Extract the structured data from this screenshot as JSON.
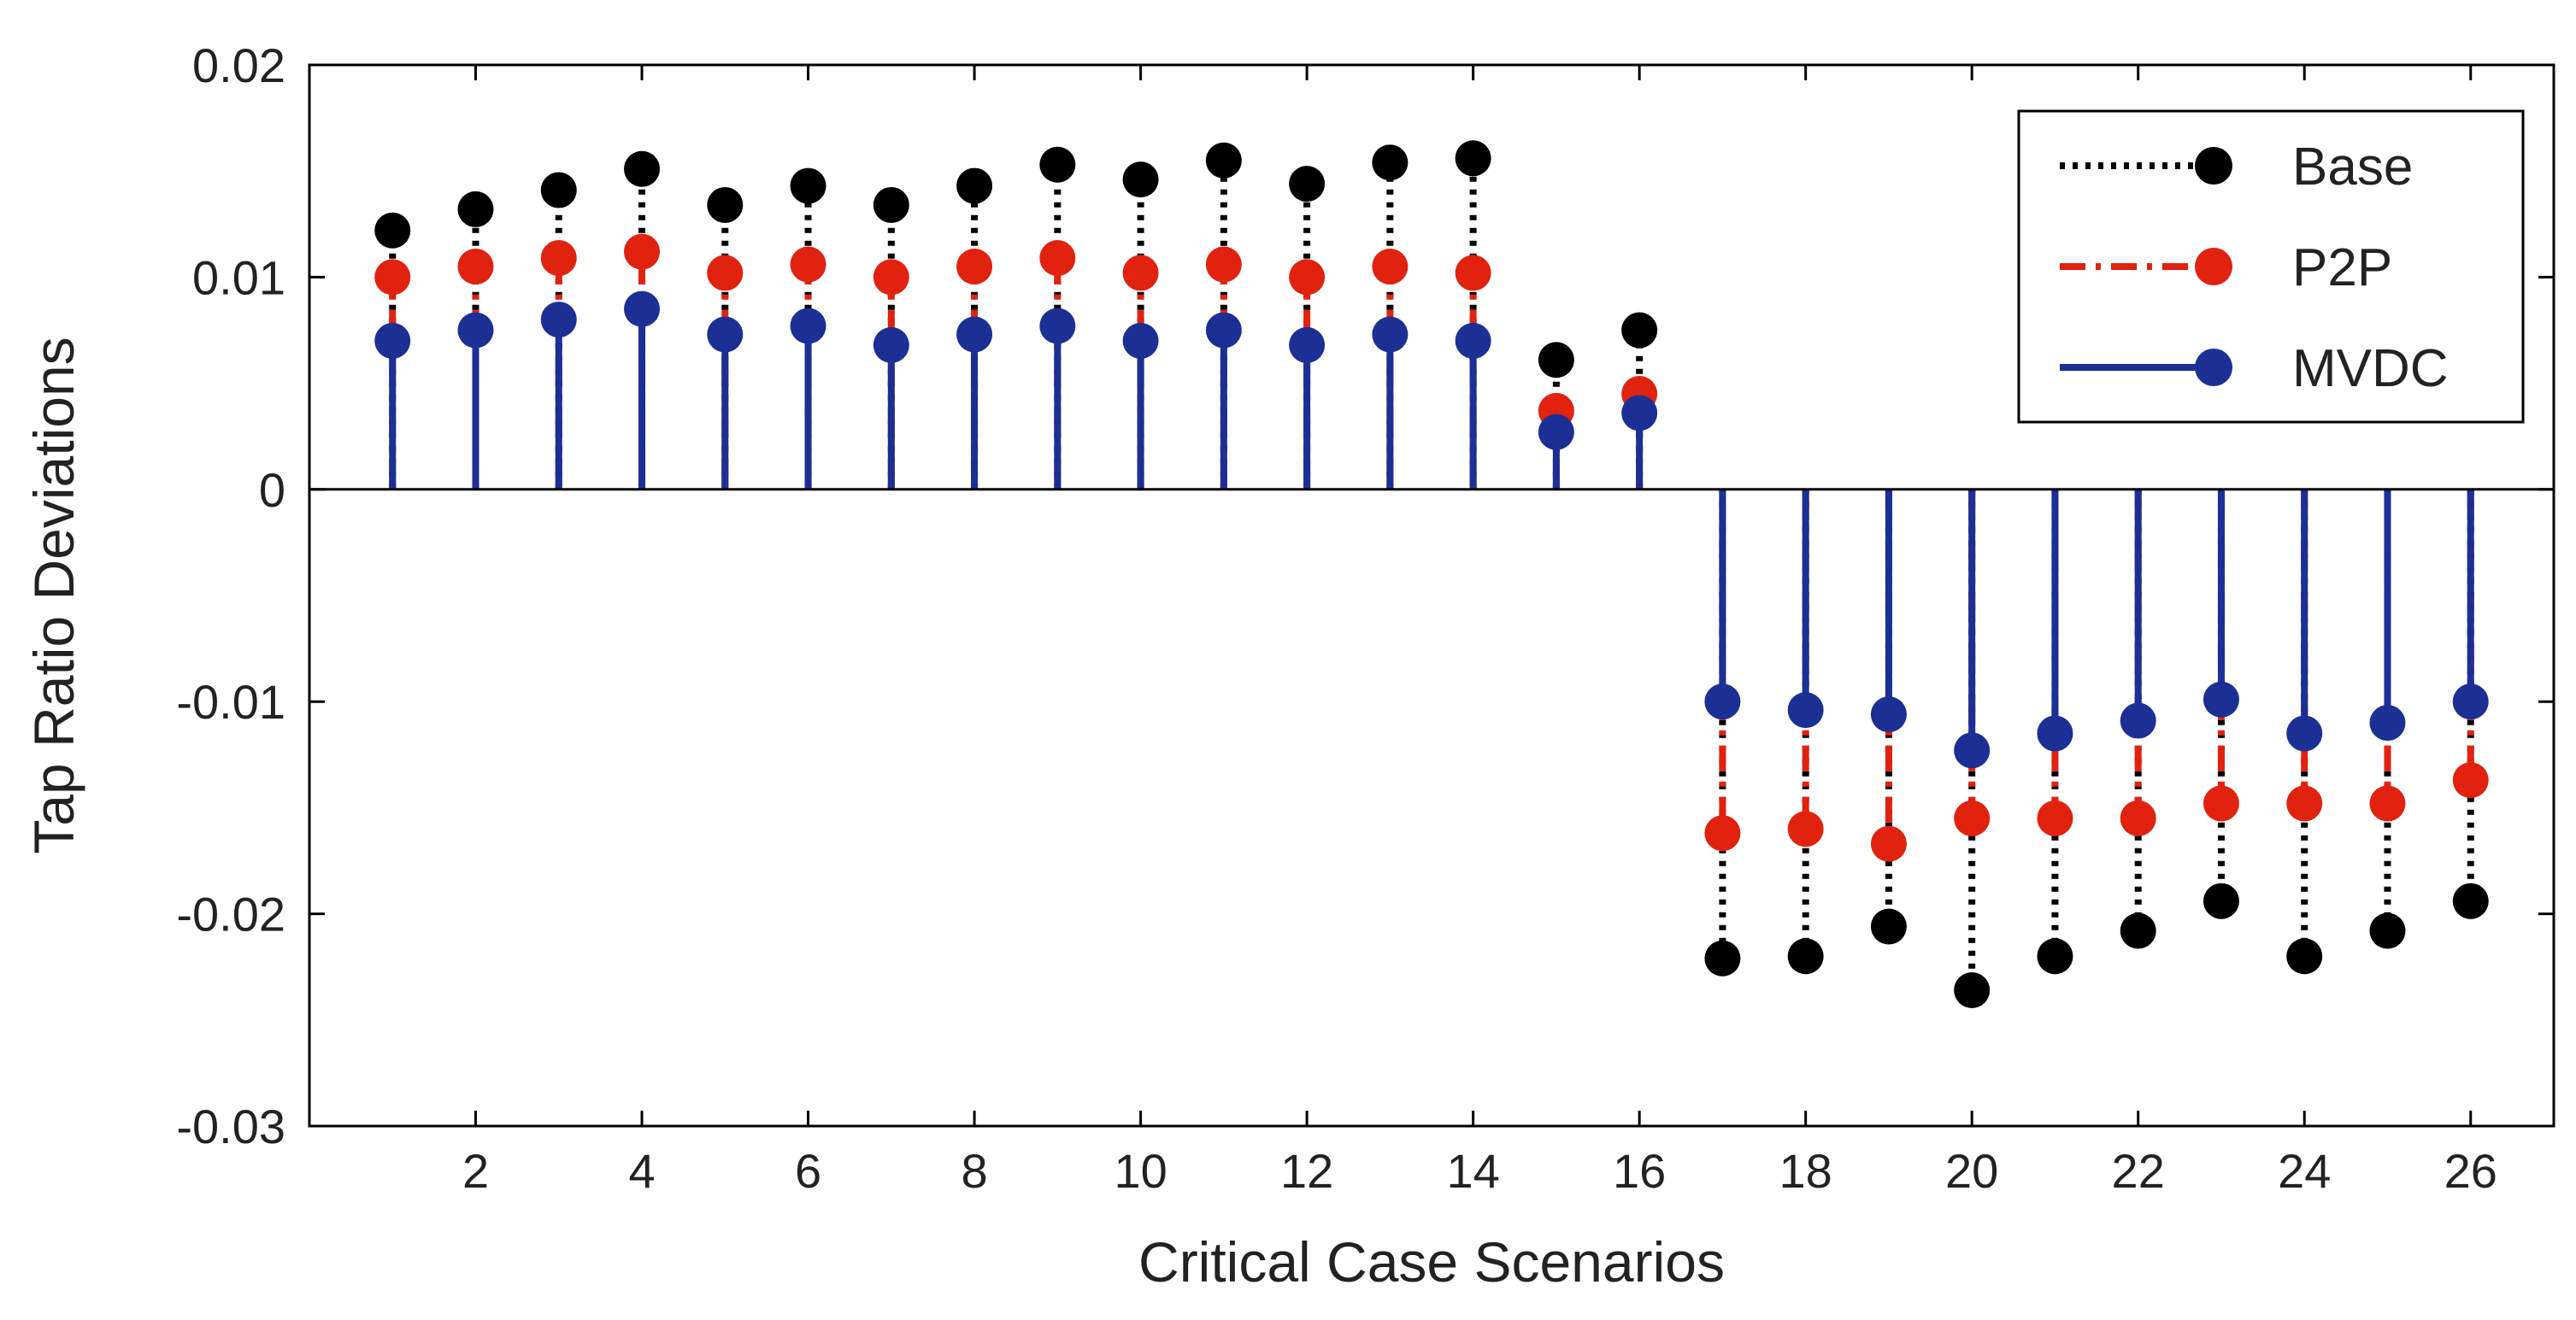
{
  "chart_data": {
    "type": "stem",
    "title": "",
    "xlabel": "Critical Case Scenarios",
    "ylabel": "Tap Ratio Deviations",
    "xlim": [
      0,
      27
    ],
    "ylim": [
      -0.03,
      0.02
    ],
    "x": [
      1,
      2,
      3,
      4,
      5,
      6,
      7,
      8,
      9,
      10,
      11,
      12,
      13,
      14,
      15,
      16,
      17,
      18,
      19,
      20,
      21,
      22,
      23,
      24,
      25,
      26
    ],
    "xticks": [
      2,
      4,
      6,
      8,
      10,
      12,
      14,
      16,
      18,
      20,
      22,
      24,
      26
    ],
    "xtick_labels": [
      "2",
      "4",
      "6",
      "8",
      "10",
      "12",
      "14",
      "16",
      "18",
      "20",
      "22",
      "24",
      "26"
    ],
    "yticks": [
      0.02,
      0.01,
      0,
      -0.01,
      -0.02,
      -0.03
    ],
    "ytick_labels": [
      "0.02",
      "0.01",
      "0",
      "-0.01",
      "-0.02",
      "-0.03"
    ],
    "legend_position": "top-right",
    "series": [
      {
        "name": "Base",
        "line_style": "dotted",
        "color": "#000000",
        "values": [
          0.0122,
          0.0132,
          0.0141,
          0.0151,
          0.0134,
          0.0143,
          0.0134,
          0.0143,
          0.0153,
          0.0146,
          0.0155,
          0.0144,
          0.0154,
          0.0156,
          0.0061,
          0.0075,
          -0.0221,
          -0.022,
          -0.0206,
          -0.0236,
          -0.022,
          -0.0208,
          -0.0194,
          -0.022,
          -0.0208,
          -0.0194
        ]
      },
      {
        "name": "P2P",
        "line_style": "dash-dot",
        "color": "#e0220f",
        "values": [
          0.01,
          0.0105,
          0.0109,
          0.0112,
          0.0102,
          0.0106,
          0.01,
          0.0105,
          0.0109,
          0.0102,
          0.0106,
          0.01,
          0.0105,
          0.0102,
          0.0037,
          0.0045,
          -0.0162,
          -0.016,
          -0.0167,
          -0.0155,
          -0.0155,
          -0.0155,
          -0.0148,
          -0.0148,
          -0.0148,
          -0.0137
        ]
      },
      {
        "name": "MVDC",
        "line_style": "solid",
        "color": "#1c2f95",
        "values": [
          0.007,
          0.0075,
          0.008,
          0.0085,
          0.0073,
          0.0077,
          0.0068,
          0.0073,
          0.0077,
          0.007,
          0.0075,
          0.0068,
          0.0073,
          0.007,
          0.0027,
          0.0036,
          -0.01,
          -0.0104,
          -0.0106,
          -0.0123,
          -0.0115,
          -0.0109,
          -0.0099,
          -0.0115,
          -0.011,
          -0.01
        ]
      }
    ]
  }
}
